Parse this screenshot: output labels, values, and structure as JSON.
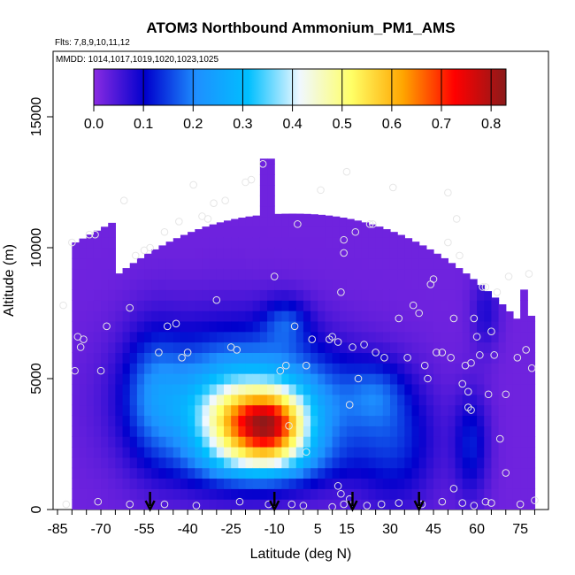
{
  "chart_data": {
    "type": "heatmap",
    "title": "ATOM3 Northbound Ammonium_PM1_AMS",
    "flights_note": "Flts: 7,8,9,10,11,12",
    "dates_note": "MMDD: 1014,1017,1019,1020,1023,1025",
    "xlabel": "Latitude (deg N)",
    "ylabel": "Altitude (m)",
    "xlim": [
      -85,
      82
    ],
    "ylim": [
      0,
      17500
    ],
    "x_ticks": [
      -85,
      -70,
      -55,
      -40,
      -25,
      -10,
      5,
      15,
      30,
      45,
      60,
      75
    ],
    "y_ticks": [
      0,
      5000,
      10000,
      15000
    ],
    "colorbar": {
      "min": 0.0,
      "max": 0.83,
      "ticks": [
        0.0,
        0.1,
        0.2,
        0.3,
        0.4,
        0.5,
        0.6,
        0.7,
        0.8
      ],
      "tick_labels": [
        "0.0",
        "0.1",
        "0.2",
        "0.3",
        "0.4",
        "0.5",
        "0.6",
        "0.7",
        "0.8"
      ],
      "colors": [
        "#8a2be2",
        "#0000cd",
        "#1e90ff",
        "#00bfff",
        "#f0f8ff",
        "#ffff66",
        "#ffa500",
        "#ff0000",
        "#8b1a1a"
      ]
    },
    "background_value": 0.02,
    "hotspot": {
      "center_latitude": -10,
      "center_altitude": 3200,
      "peak_value": 0.78,
      "latitude_range": [
        -40,
        5
      ],
      "altitude_range": [
        900,
        5000
      ]
    },
    "upward_arrows_latitude": [
      -53,
      -10,
      17,
      40
    ],
    "sample_points": [
      [
        -83,
        7800
      ],
      [
        -80,
        10200
      ],
      [
        -79,
        5300
      ],
      [
        -78,
        6600
      ],
      [
        -77,
        6200
      ],
      [
        -76,
        6500
      ],
      [
        -74,
        10500
      ],
      [
        -72,
        10500
      ],
      [
        -70,
        5300
      ],
      [
        -68,
        7000
      ],
      [
        -62,
        11800
      ],
      [
        -60,
        7700
      ],
      [
        -58,
        9700
      ],
      [
        -55,
        9900
      ],
      [
        -53,
        10000
      ],
      [
        -50,
        6000
      ],
      [
        -48,
        10600
      ],
      [
        -47,
        7000
      ],
      [
        -44,
        7100
      ],
      [
        -43,
        11000
      ],
      [
        -42,
        5800
      ],
      [
        -40,
        6000
      ],
      [
        -38,
        12400
      ],
      [
        -35,
        11200
      ],
      [
        -33,
        11100
      ],
      [
        -31,
        11700
      ],
      [
        -30,
        8000
      ],
      [
        -27,
        11800
      ],
      [
        -25,
        6200
      ],
      [
        -23,
        6100
      ],
      [
        -20,
        12500
      ],
      [
        -18,
        12600
      ],
      [
        -14,
        13200
      ],
      [
        -10,
        8900
      ],
      [
        -8,
        5300
      ],
      [
        -6,
        5500
      ],
      [
        -3,
        7000
      ],
      [
        -2,
        10900
      ],
      [
        1,
        5500
      ],
      [
        3,
        6500
      ],
      [
        6,
        12200
      ],
      [
        9,
        6500
      ],
      [
        10,
        6600
      ],
      [
        12,
        6400
      ],
      [
        13,
        8300
      ],
      [
        14,
        9800
      ],
      [
        14,
        10300
      ],
      [
        15,
        12900
      ],
      [
        16,
        4000
      ],
      [
        17,
        6200
      ],
      [
        18,
        10600
      ],
      [
        19,
        5000
      ],
      [
        21,
        6300
      ],
      [
        23,
        10900
      ],
      [
        24,
        10900
      ],
      [
        25,
        6000
      ],
      [
        28,
        5800
      ],
      [
        31,
        12300
      ],
      [
        33,
        7300
      ],
      [
        36,
        5800
      ],
      [
        38,
        7800
      ],
      [
        40,
        7500
      ],
      [
        42,
        5500
      ],
      [
        43,
        5000
      ],
      [
        44,
        8600
      ],
      [
        45,
        8800
      ],
      [
        46,
        6000
      ],
      [
        48,
        6000
      ],
      [
        50,
        10200
      ],
      [
        50,
        12100
      ],
      [
        51,
        5800
      ],
      [
        52,
        7300
      ],
      [
        53,
        11100
      ],
      [
        54,
        9700
      ],
      [
        55,
        4800
      ],
      [
        56,
        5500
      ],
      [
        57,
        3900
      ],
      [
        57,
        4500
      ],
      [
        58,
        3800
      ],
      [
        58,
        5600
      ],
      [
        59,
        7300
      ],
      [
        60,
        6600
      ],
      [
        61,
        5900
      ],
      [
        62,
        8500
      ],
      [
        63,
        8500
      ],
      [
        64,
        4400
      ],
      [
        65,
        6800
      ],
      [
        66,
        5900
      ],
      [
        67,
        8300
      ],
      [
        68,
        2700
      ],
      [
        70,
        4400
      ],
      [
        71,
        8900
      ],
      [
        74,
        5800
      ],
      [
        77,
        6100
      ],
      [
        79,
        5400
      ],
      [
        78,
        9000
      ],
      [
        -5,
        3200
      ],
      [
        1,
        2200
      ],
      [
        12,
        900
      ],
      [
        13,
        600
      ],
      [
        14,
        200
      ],
      [
        16,
        400
      ],
      [
        -82,
        200
      ],
      [
        -71,
        300
      ],
      [
        -60,
        200
      ],
      [
        -48,
        200
      ],
      [
        -37,
        150
      ],
      [
        -22,
        300
      ],
      [
        -12,
        200
      ],
      [
        -4,
        200
      ],
      [
        0,
        150
      ],
      [
        10,
        100
      ],
      [
        22,
        150
      ],
      [
        27,
        200
      ],
      [
        33,
        250
      ],
      [
        41,
        200
      ],
      [
        48,
        300
      ],
      [
        52,
        800
      ],
      [
        55,
        250
      ],
      [
        59,
        150
      ],
      [
        63,
        300
      ],
      [
        65,
        250
      ],
      [
        70,
        1400
      ],
      [
        75,
        200
      ],
      [
        80,
        350
      ]
    ]
  }
}
